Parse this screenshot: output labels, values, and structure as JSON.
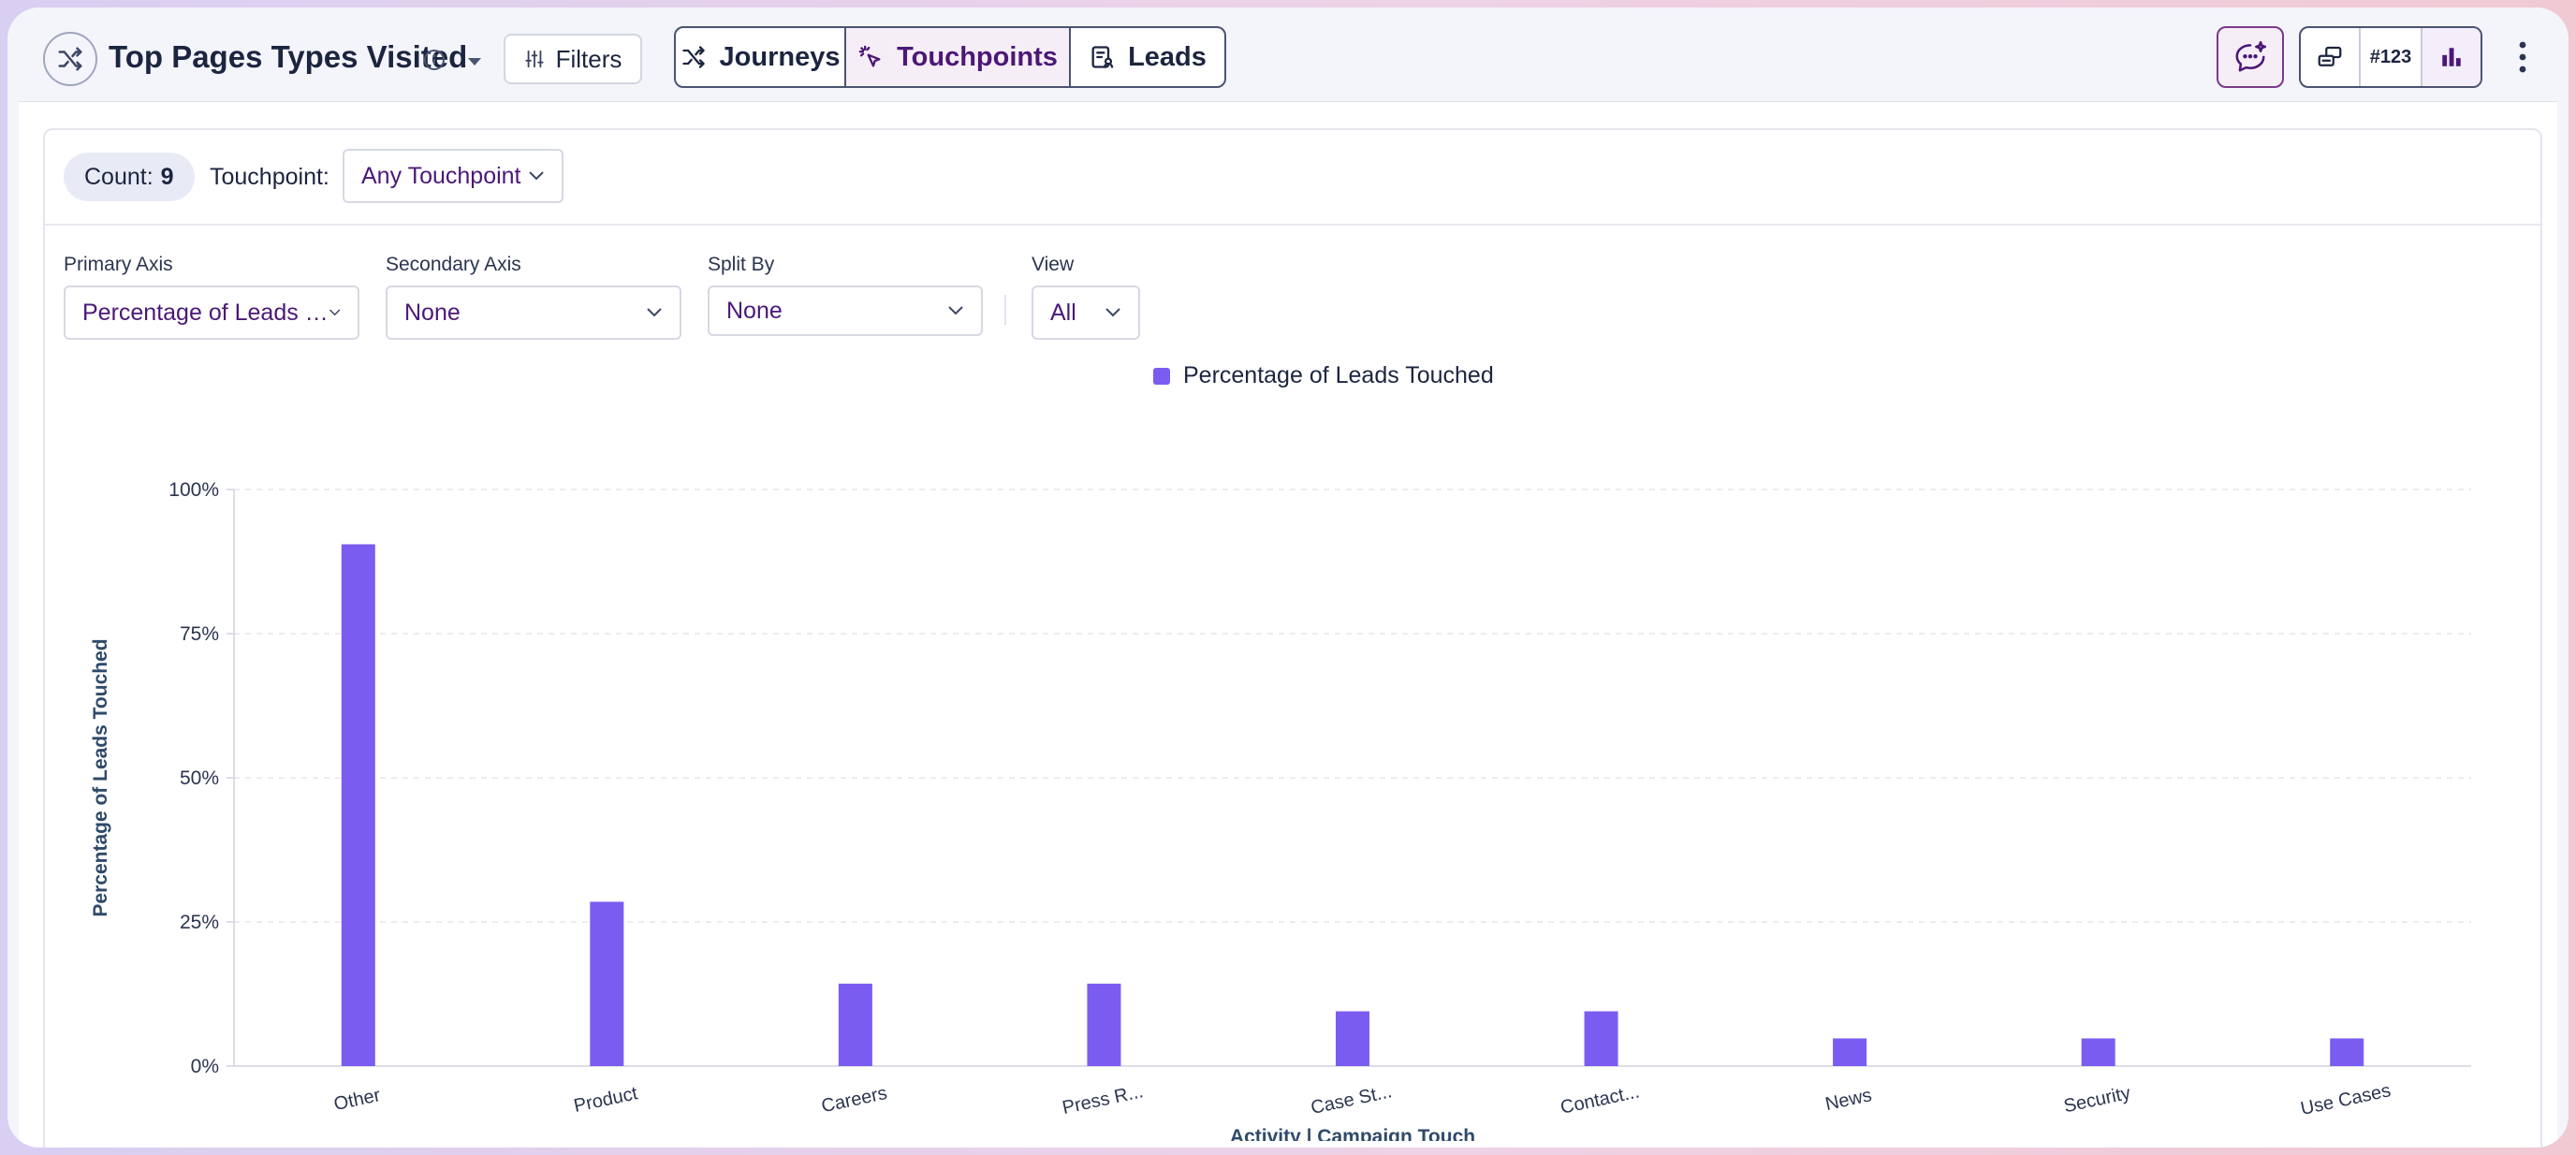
{
  "header": {
    "title": "Top Pages Types Visited",
    "filters_label": "Filters",
    "tabs": [
      {
        "label": "Journeys",
        "active": false
      },
      {
        "label": "Touchpoints",
        "active": true
      },
      {
        "label": "Leads",
        "active": false
      }
    ],
    "number_format_label": "#123"
  },
  "toolbar": {
    "count_label": "Count:",
    "count_value": "9",
    "touchpoint_label": "Touchpoint:",
    "touchpoint_value": "Any Touchpoint"
  },
  "axes": {
    "primary_label": "Primary Axis",
    "primary_value": "Percentage of Leads …",
    "secondary_label": "Secondary Axis",
    "secondary_value": "None",
    "split_label": "Split By",
    "split_value": "None",
    "view_label": "View",
    "view_value": "All"
  },
  "colors": {
    "accent": "#4b1877",
    "bar": "#7b5cf0"
  },
  "chart_data": {
    "type": "bar",
    "categories": [
      "Other",
      "Product",
      "Careers",
      "Press R...",
      "Case St...",
      "Contact...",
      "News",
      "Security",
      "Use Cases"
    ],
    "series": [
      {
        "name": "Percentage of Leads Touched",
        "values": [
          90.5,
          28.5,
          14.3,
          14.3,
          9.5,
          9.5,
          4.8,
          4.8,
          4.8
        ]
      }
    ],
    "ylabel": "Percentage of Leads Touched",
    "xlabel": "Activity | Campaign Touch",
    "ylim": [
      0,
      100
    ],
    "yticks": [
      "0%",
      "25%",
      "50%",
      "75%",
      "100%"
    ],
    "legend": "top-center",
    "grid": true
  }
}
